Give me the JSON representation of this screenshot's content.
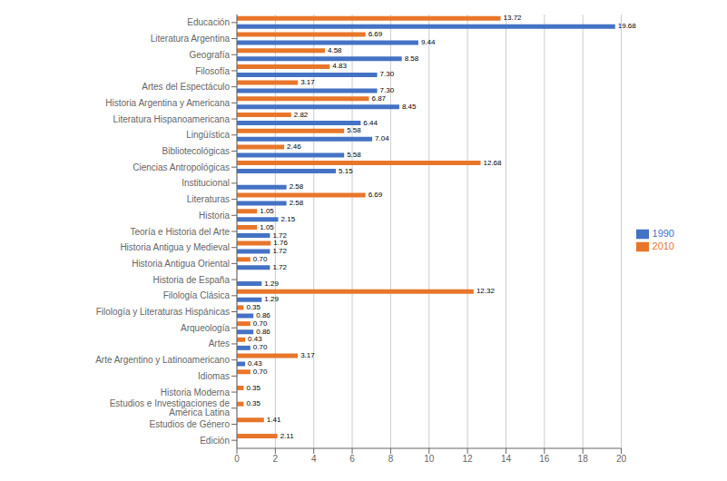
{
  "chart_data": {
    "type": "bar",
    "orientation": "horizontal",
    "categories": [
      "Educación",
      "Literatura Argentina",
      "Geografía",
      "Filosofía",
      "Artes del Espectáculo",
      "Historia Argentina y Americana",
      "Literatura Hispanoamericana",
      "Lingüística",
      "Bibliotecológicas",
      "Ciencias Antropológicas",
      "Institucional",
      "Literaturas",
      "Historia",
      "Teoría e Historia del Arte",
      "Historia Antigua y Medieval",
      "Historia Antigua Oriental",
      "Historia de España",
      "Filología Clásica",
      "Filología y Literaturas Hispánicas",
      "Arqueología",
      "Artes",
      "Arte Argentino y Latinoamericano",
      "Idiomas",
      "Historia Moderna",
      "Estudios e Investigaciones de América Latina",
      "Estudios de Género",
      "Edición"
    ],
    "series": [
      {
        "name": "2010",
        "color": "#E8762A",
        "values": [
          13.72,
          6.69,
          4.58,
          4.83,
          3.17,
          6.87,
          2.82,
          5.58,
          2.46,
          12.68,
          0.0,
          6.69,
          1.05,
          1.05,
          1.76,
          0.7,
          0.0,
          12.32,
          0.35,
          0.7,
          0.43,
          3.17,
          0.7,
          0.35,
          0.35,
          1.41,
          2.11
        ],
        "value_labels": [
          "13.72",
          "6.69",
          "4.58",
          "4.83",
          "3.17",
          "6.87",
          "2.82",
          "5.58",
          "2.46",
          "12.68",
          null,
          "6.69",
          "1.05",
          "1.05",
          "1.76",
          "0.70",
          null,
          "12.32",
          "0.35",
          "0.70",
          "0.43",
          "3.17",
          "0.70",
          "0.35",
          "0.35",
          "1.41",
          "2.11"
        ]
      },
      {
        "name": "1990",
        "color": "#4472C4",
        "values": [
          19.68,
          9.44,
          8.58,
          7.3,
          7.3,
          8.45,
          6.44,
          7.04,
          5.58,
          5.15,
          2.58,
          2.58,
          2.15,
          1.72,
          1.72,
          1.72,
          1.29,
          1.29,
          0.86,
          0.86,
          0.7,
          0.43,
          0.0,
          0.0,
          0.0,
          0.0,
          0.0
        ],
        "value_labels": [
          "19.68",
          "9.44",
          "8.58",
          "7.30",
          "7.30",
          "8.45",
          "6.44",
          "7.04",
          "5.58",
          "5.15",
          "2.58",
          "2.58",
          "2.15",
          "1.72",
          "1.72",
          "1.72",
          "1.29",
          "1.29",
          "0.86",
          "0.86",
          "0.70",
          "0.43",
          null,
          null,
          null,
          null,
          null
        ]
      }
    ],
    "xlim": [
      0,
      20
    ],
    "xticks": [
      0,
      2,
      4,
      6,
      8,
      10,
      12,
      14,
      16,
      18,
      20
    ],
    "grid": true,
    "legend": "right",
    "data_labels": true
  }
}
